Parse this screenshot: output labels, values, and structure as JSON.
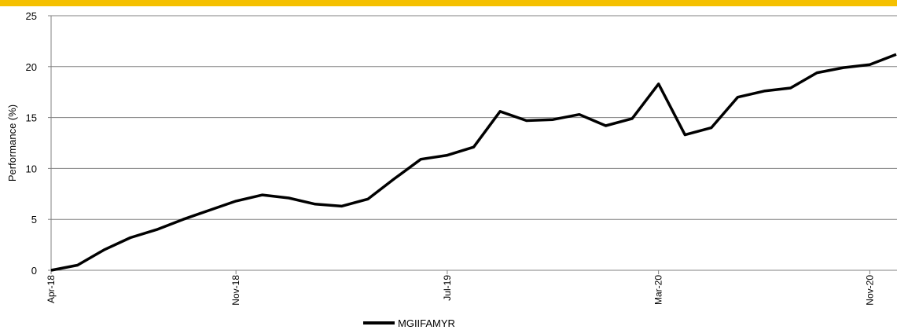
{
  "colors": {
    "accent_bar": "#f5c000",
    "series_line": "#000000",
    "grid": "#808080"
  },
  "chart_data": {
    "type": "line",
    "ylabel": "Performance (%)",
    "xlabel": "",
    "ylim": [
      0,
      25
    ],
    "y_ticks": [
      "0",
      "5",
      "10",
      "15",
      "20",
      "25"
    ],
    "x_tick_labels": [
      "Apr-18",
      "Nov-18",
      "Jul-19",
      "Mar-20",
      "Nov-20"
    ],
    "grid": "horizontal",
    "legend": "bottom-center",
    "series": [
      {
        "name": "MGIIFAMYR",
        "x": [
          "Apr-18",
          "May-18",
          "Jun-18",
          "Jul-18",
          "Aug-18",
          "Sep-18",
          "Oct-18",
          "Nov-18",
          "Dec-18",
          "Jan-19",
          "Feb-19",
          "Mar-19",
          "Apr-19",
          "May-19",
          "Jun-19",
          "Jul-19",
          "Aug-19",
          "Sep-19",
          "Oct-19",
          "Nov-19",
          "Dec-19",
          "Jan-20",
          "Feb-20",
          "Mar-20",
          "Apr-20",
          "May-20",
          "Jun-20",
          "Jul-20",
          "Aug-20",
          "Sep-20",
          "Oct-20",
          "Nov-20",
          "Dec-20"
        ],
        "values": [
          0,
          0.5,
          2.0,
          3.2,
          4.0,
          5.0,
          5.9,
          6.8,
          7.4,
          7.1,
          6.5,
          6.3,
          7.0,
          9.0,
          10.9,
          11.3,
          12.1,
          15.6,
          14.7,
          14.8,
          15.3,
          14.2,
          14.9,
          18.3,
          13.3,
          14.0,
          17.0,
          17.6,
          17.9,
          19.4,
          19.9,
          20.2,
          21.2
        ]
      }
    ]
  }
}
